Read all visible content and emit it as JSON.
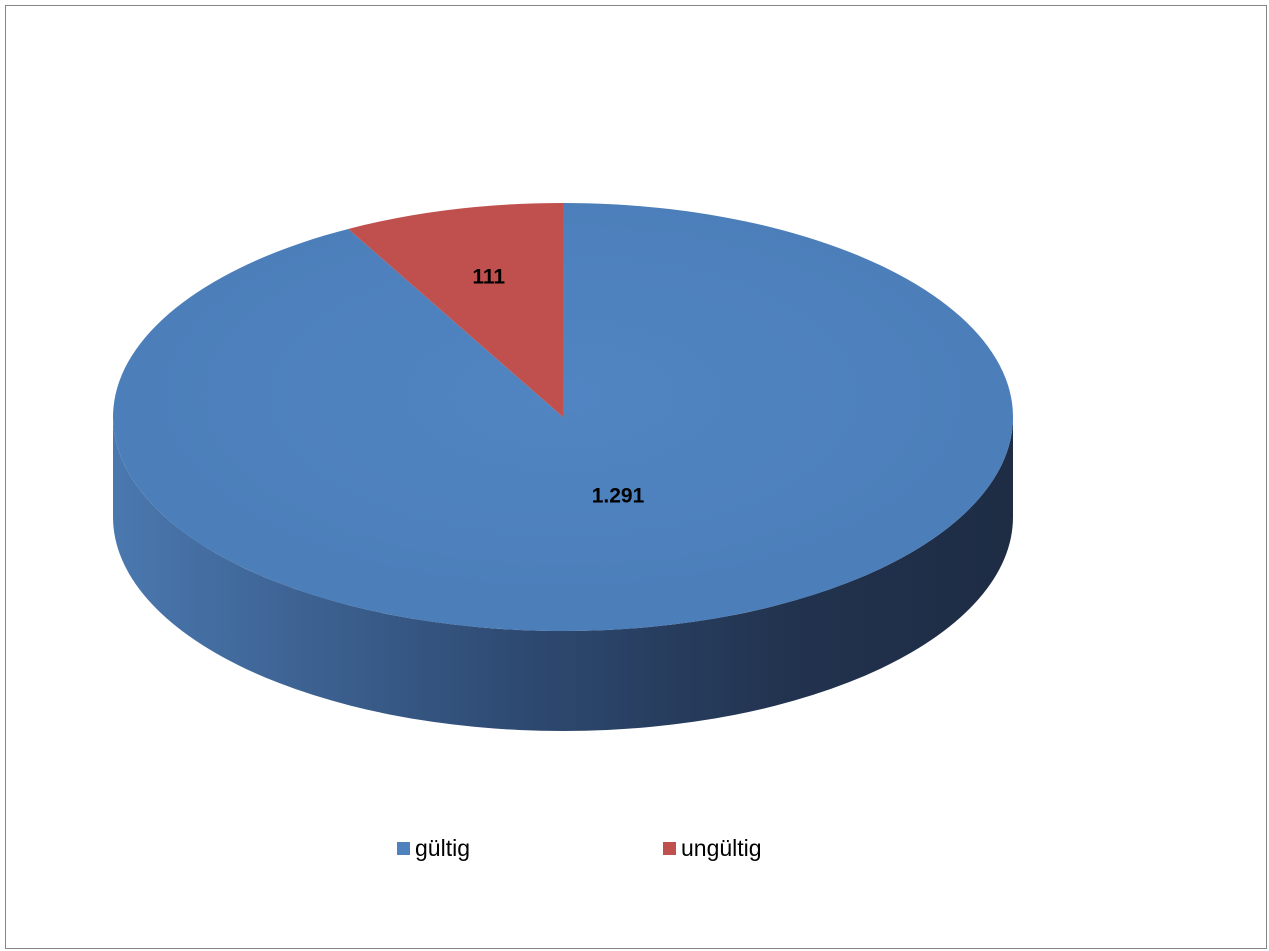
{
  "chart_data": {
    "type": "pie",
    "style": "3d",
    "title": "",
    "categories": [
      "gültig",
      "ungültig"
    ],
    "values": [
      1291,
      111
    ],
    "data_labels": [
      "1.291",
      "111"
    ],
    "colors": [
      "#4F81BD",
      "#C0504D"
    ],
    "legend": {
      "position": "bottom",
      "entries": [
        {
          "label": "gültig",
          "color": "#4F81BD"
        },
        {
          "label": "ungültig",
          "color": "#C0504D"
        }
      ]
    }
  }
}
